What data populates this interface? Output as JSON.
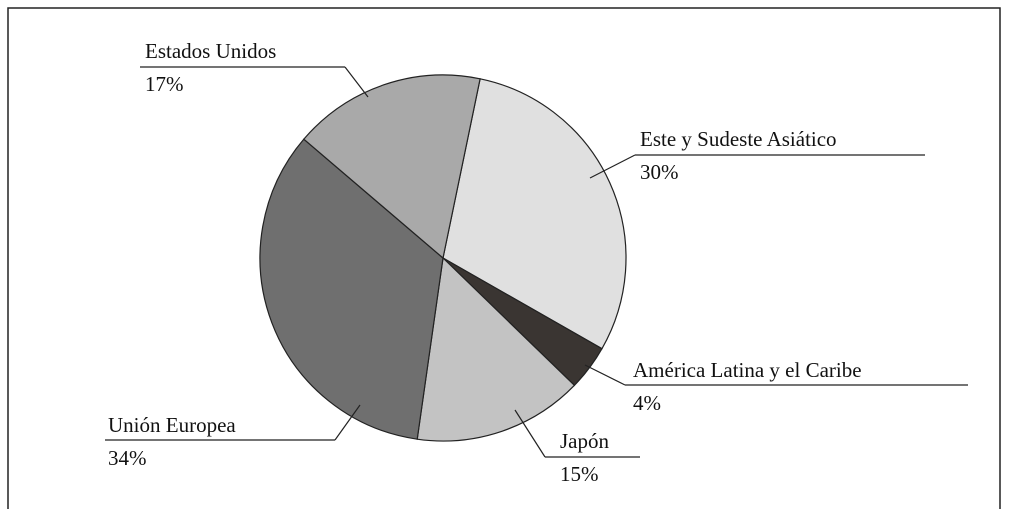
{
  "chart_data": {
    "type": "pie",
    "categories": [
      "Este y Sudeste Asiático",
      "América Latina y el Caribe",
      "Japón",
      "Unión Europea",
      "Estados Unidos"
    ],
    "values": [
      30,
      4,
      15,
      34,
      17
    ],
    "value_labels": [
      "30%",
      "4%",
      "15%",
      "34%",
      "17%"
    ],
    "colors": [
      "#e0e0e0",
      "#3a3532",
      "#c3c3c3",
      "#6f6f6f",
      "#a9a9a9"
    ]
  }
}
